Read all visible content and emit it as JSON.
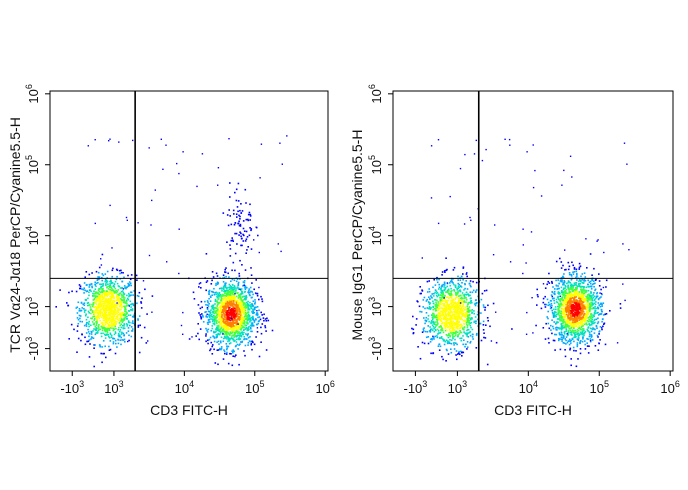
{
  "chart_data": [
    {
      "type": "scatter",
      "subtype": "flow-cytometry-density-dot-plot",
      "xlabel": "CD3 FITC-H",
      "ylabel": "TCR Vα24-Jα18 PerCP/Cyanine5.5-H",
      "x_scale": "biexponential",
      "y_scale": "biexponential",
      "x_ticks": [
        {
          "label": "-10",
          "exp": "3",
          "value": -1000
        },
        {
          "label": "10",
          "exp": "3",
          "value": 1000
        },
        {
          "label": "10",
          "exp": "4",
          "value": 10000
        },
        {
          "label": "10",
          "exp": "5",
          "value": 100000
        },
        {
          "label": "10",
          "exp": "6",
          "value": 1000000
        }
      ],
      "y_ticks": [
        {
          "label": "-10",
          "exp": "3",
          "value": -1000
        },
        {
          "label": "10",
          "exp": "3",
          "value": 1000
        },
        {
          "label": "10",
          "exp": "4",
          "value": 10000
        },
        {
          "label": "10",
          "exp": "5",
          "value": 100000
        },
        {
          "label": "10",
          "exp": "6",
          "value": 1000000
        }
      ],
      "quadrant_gate": {
        "x": 2000,
        "y": 2500
      },
      "populations": [
        {
          "x_center": 700,
          "y_center": 900,
          "density": "high"
        },
        {
          "x_center": 45000,
          "y_center": 700,
          "density": "very-high"
        },
        {
          "x_center": 60000,
          "y_center": 15000,
          "density": "low"
        }
      ],
      "grid": false
    },
    {
      "type": "scatter",
      "subtype": "flow-cytometry-density-dot-plot",
      "xlabel": "CD3 FITC-H",
      "ylabel": "Mouse IgG1 PerCP/Cyanine5.5-H",
      "x_scale": "biexponential",
      "y_scale": "biexponential",
      "x_ticks": [
        {
          "label": "-10",
          "exp": "3",
          "value": -1000
        },
        {
          "label": "10",
          "exp": "3",
          "value": 1000
        },
        {
          "label": "10",
          "exp": "4",
          "value": 10000
        },
        {
          "label": "10",
          "exp": "5",
          "value": 100000
        },
        {
          "label": "10",
          "exp": "6",
          "value": 1000000
        }
      ],
      "y_ticks": [
        {
          "label": "-10",
          "exp": "3",
          "value": -1000
        },
        {
          "label": "10",
          "exp": "3",
          "value": 1000
        },
        {
          "label": "10",
          "exp": "4",
          "value": 10000
        },
        {
          "label": "10",
          "exp": "5",
          "value": 100000
        },
        {
          "label": "10",
          "exp": "6",
          "value": 1000000
        }
      ],
      "quadrant_gate": {
        "x": 2000,
        "y": 2500
      },
      "populations": [
        {
          "x_center": 700,
          "y_center": 700,
          "density": "high"
        },
        {
          "x_center": 45000,
          "y_center": 900,
          "density": "very-high"
        }
      ],
      "grid": false
    }
  ],
  "colors": {
    "density_scale": [
      "#0000ff",
      "#00aaff",
      "#00e0c0",
      "#40ff40",
      "#ffff00",
      "#ff8000",
      "#ff0000"
    ],
    "axis": "#000000",
    "gate_line": "#000000"
  }
}
